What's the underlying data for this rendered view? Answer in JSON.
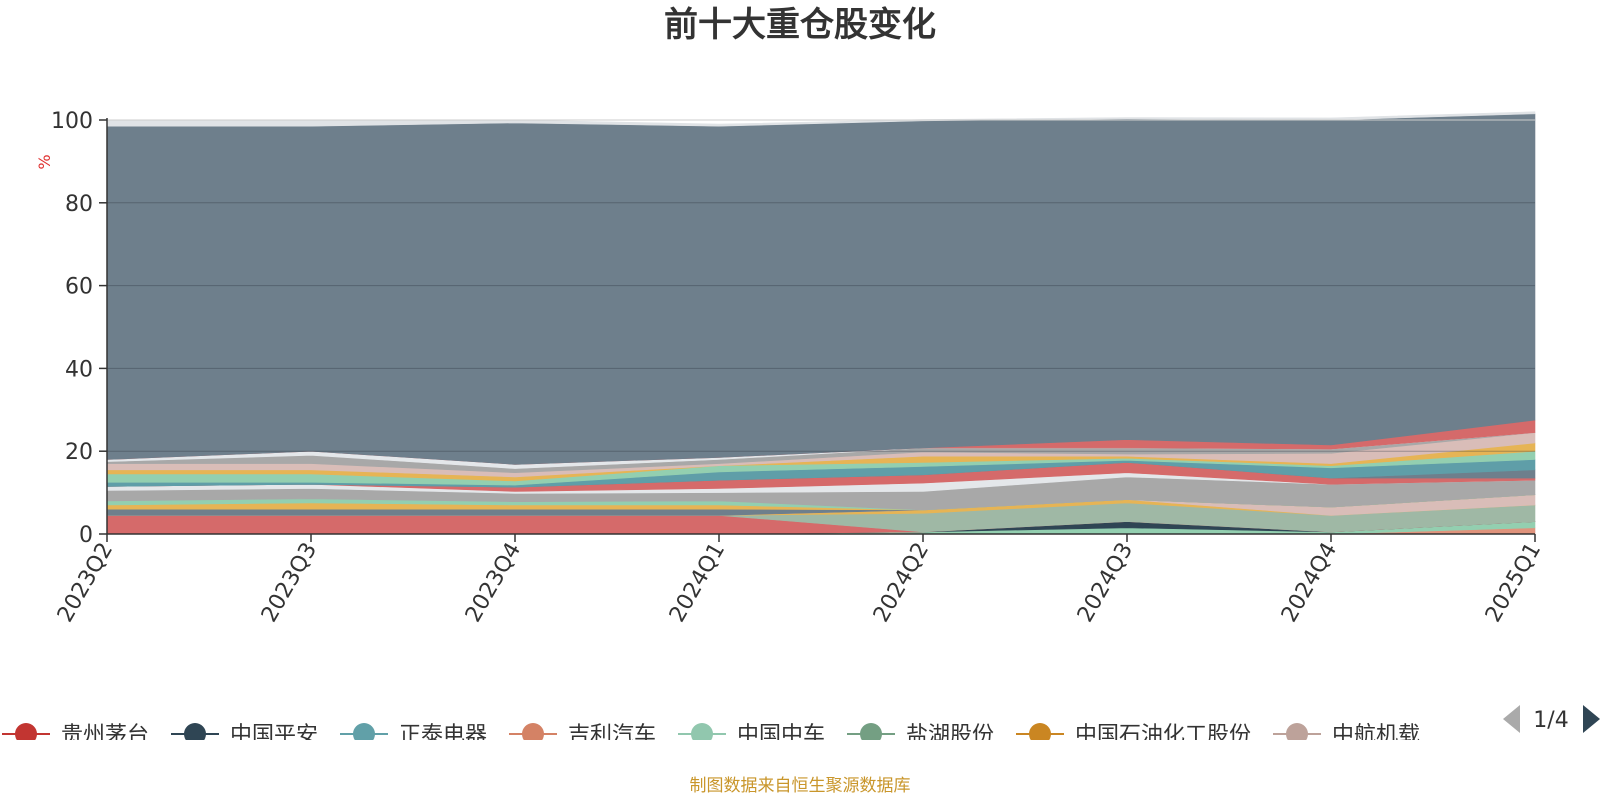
{
  "chart_data": {
    "type": "area",
    "stacked": true,
    "title": "前十大重仓股变化",
    "ylabel": "%",
    "ylim": [
      0,
      100
    ],
    "yticks": [
      0,
      20,
      40,
      60,
      80,
      100
    ],
    "grid": true,
    "legend_position": "bottom",
    "categories": [
      "2023Q2",
      "2023Q3",
      "2023Q4",
      "2024Q1",
      "2024Q2",
      "2024Q3",
      "2024Q4",
      "2025Q1"
    ],
    "series": [
      {
        "name": "吉利汽车",
        "color": "#e0937c",
        "values": [
          0,
          0,
          0,
          0,
          0,
          0,
          0,
          1.5
        ]
      },
      {
        "name": "中国中车",
        "color": "#93cfb0",
        "values": [
          0,
          0,
          0,
          0,
          0.5,
          1.5,
          0.5,
          1.5
        ]
      },
      {
        "name": "中国平安",
        "color": "#2f4554",
        "values": [
          0,
          0,
          0,
          0,
          0,
          1.5,
          0,
          0
        ]
      },
      {
        "name": "贵州茅台",
        "color": "#d56a6a",
        "values": [
          4.5,
          4.5,
          4.5,
          4.5,
          0,
          0,
          0,
          0
        ]
      },
      {
        "name": "盐湖股份",
        "color": "#9fb8a5",
        "values": [
          0,
          0,
          0,
          0,
          4.5,
          4.5,
          4.0,
          4.0
        ]
      },
      {
        "name": "中国石油化工股份",
        "color": "#e6b455",
        "values": [
          0,
          0,
          0,
          0,
          0.8,
          0.8,
          0,
          0
        ]
      },
      {
        "name": "中航机载",
        "color": "#d9bdb8",
        "values": [
          0,
          0,
          0,
          0,
          0,
          0,
          2.0,
          2.5
        ]
      },
      {
        "name": "",
        "color": "#6e7f8c",
        "values": [
          1.5,
          1.5,
          1.5,
          1.5,
          0,
          0,
          0,
          0
        ]
      },
      {
        "name": "",
        "color": "#e6b455",
        "values": [
          1.0,
          1.5,
          1.0,
          1.0,
          0,
          0,
          0,
          0
        ]
      },
      {
        "name": "",
        "color": "#93cfb0",
        "values": [
          1.0,
          1.0,
          0.8,
          1.0,
          0,
          0,
          0,
          0
        ]
      },
      {
        "name": "",
        "color": "#a8a8a8",
        "values": [
          2.5,
          2.5,
          2.0,
          2.0,
          4.5,
          5.5,
          5.5,
          3.5
        ]
      },
      {
        "name": "",
        "color": "#e4e7ea",
        "values": [
          1.0,
          1.0,
          0.5,
          1.0,
          2.0,
          1.0,
          0,
          0
        ]
      },
      {
        "name": "",
        "color": "#d56a6a",
        "values": [
          0,
          0,
          1.0,
          2.0,
          2.0,
          2.5,
          1.5,
          0.5
        ]
      },
      {
        "name": "",
        "color": "#6e7f8c",
        "values": [
          0,
          0,
          0,
          0,
          0,
          0,
          0,
          2.0
        ]
      },
      {
        "name": "",
        "color": "#5f9ea8",
        "values": [
          1.0,
          0.5,
          0.5,
          2.0,
          2.0,
          0.5,
          2.5,
          2.5
        ]
      },
      {
        "name": "",
        "color": "#93cfb0",
        "values": [
          2.0,
          2.0,
          1.0,
          1.5,
          1.0,
          0.5,
          0.5,
          2.0
        ]
      },
      {
        "name": "",
        "color": "#e6b455",
        "values": [
          1.0,
          1.0,
          1.0,
          0,
          1.5,
          0.5,
          0.5,
          2.0
        ]
      },
      {
        "name": "",
        "color": "#d9bdb8",
        "values": [
          1.5,
          1.5,
          1.0,
          0.5,
          1.0,
          0.5,
          2.5,
          2.5
        ]
      },
      {
        "name": "",
        "color": "#a8a8a8",
        "values": [
          0.5,
          2.0,
          1.0,
          1.0,
          1.0,
          1.5,
          1.0,
          0
        ]
      },
      {
        "name": "",
        "color": "#e4e7ea",
        "values": [
          0.5,
          1.0,
          1.0,
          0.5,
          0,
          0,
          0,
          0
        ]
      },
      {
        "name": "",
        "color": "#d56a6a",
        "values": [
          0,
          0,
          0,
          0,
          0,
          2.0,
          1.0,
          3.0
        ]
      },
      {
        "name": "",
        "color": "#6e7f8c",
        "values": [
          80.5,
          78.5,
          82.5,
          80,
          79,
          77.5,
          78.5,
          74
        ]
      },
      {
        "name": "",
        "color": "#e0e3e6",
        "values": [
          1.5,
          1.5,
          0.7,
          0.5,
          0.3,
          0.3,
          0.5,
          0.5
        ]
      }
    ],
    "legend": [
      {
        "name": "贵州茅台",
        "color": "#c23531"
      },
      {
        "name": "中国平安",
        "color": "#2f4554"
      },
      {
        "name": "正泰电器",
        "color": "#61a0a8"
      },
      {
        "name": "吉利汽车",
        "color": "#d48265"
      },
      {
        "name": "中国中车",
        "color": "#91c7ae"
      },
      {
        "name": "盐湖股份",
        "color": "#749f83"
      },
      {
        "name": "中国石油化工股份",
        "color": "#ca8622"
      },
      {
        "name": "中航机载",
        "color": "#bda29a"
      }
    ],
    "legend_page": "1/4"
  },
  "source_note": "制图数据来自恒生聚源数据库"
}
